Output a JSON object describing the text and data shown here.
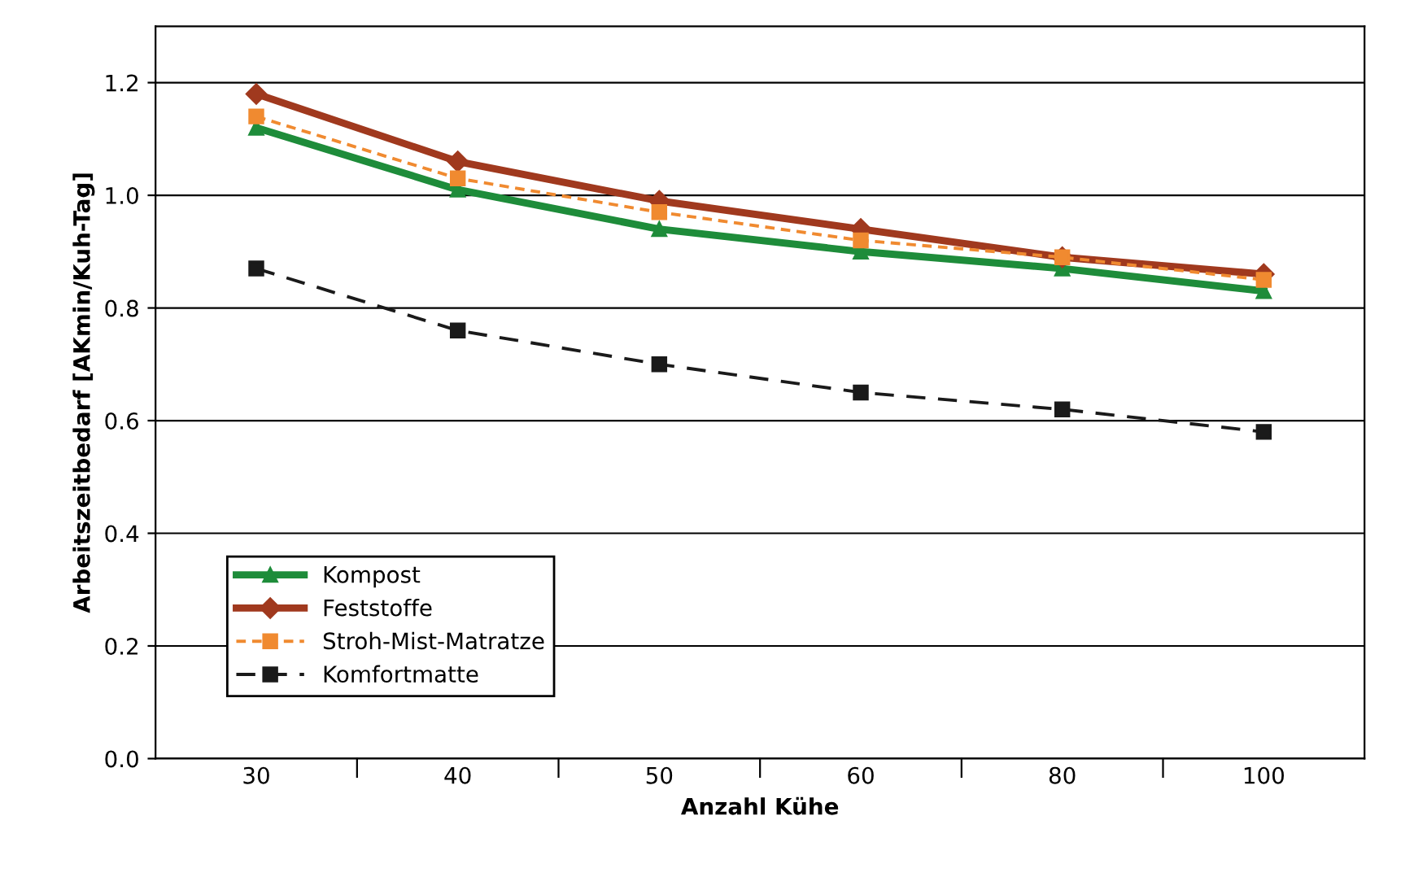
{
  "chart_data": {
    "type": "line",
    "xlabel": "Anzahl Kühe",
    "ylabel": "Arbeitszeitbedarf [AKmin/Kuh-Tag]",
    "categories": [
      "30",
      "40",
      "50",
      "60",
      "80",
      "100"
    ],
    "series": [
      {
        "name": "Kompost",
        "color": "#1e8c3a",
        "marker": "triangle",
        "line_style": "solid",
        "values": [
          1.12,
          1.01,
          0.94,
          0.9,
          0.87,
          0.83
        ]
      },
      {
        "name": "Feststoffe",
        "color": "#a0391e",
        "marker": "diamond",
        "line_style": "solid",
        "values": [
          1.18,
          1.06,
          0.99,
          0.94,
          0.89,
          0.86
        ]
      },
      {
        "name": "Stroh-Mist-Matratze",
        "color": "#f08a30",
        "marker": "square",
        "line_style": "dotted",
        "values": [
          1.14,
          1.03,
          0.97,
          0.92,
          0.89,
          0.85
        ]
      },
      {
        "name": "Komfortmatte",
        "color": "#1a1a1a",
        "marker": "square",
        "line_style": "dashed",
        "values": [
          0.87,
          0.76,
          0.7,
          0.65,
          0.62,
          0.58
        ]
      }
    ],
    "ylim": [
      0,
      1.3
    ],
    "yticks": [
      {
        "value": 0,
        "label": "0.0"
      },
      0.2,
      0.4,
      0.6,
      0.8,
      {
        "value": 1,
        "label": "1.0"
      },
      1.2
    ],
    "grid": "y",
    "legend": "bottom left"
  }
}
